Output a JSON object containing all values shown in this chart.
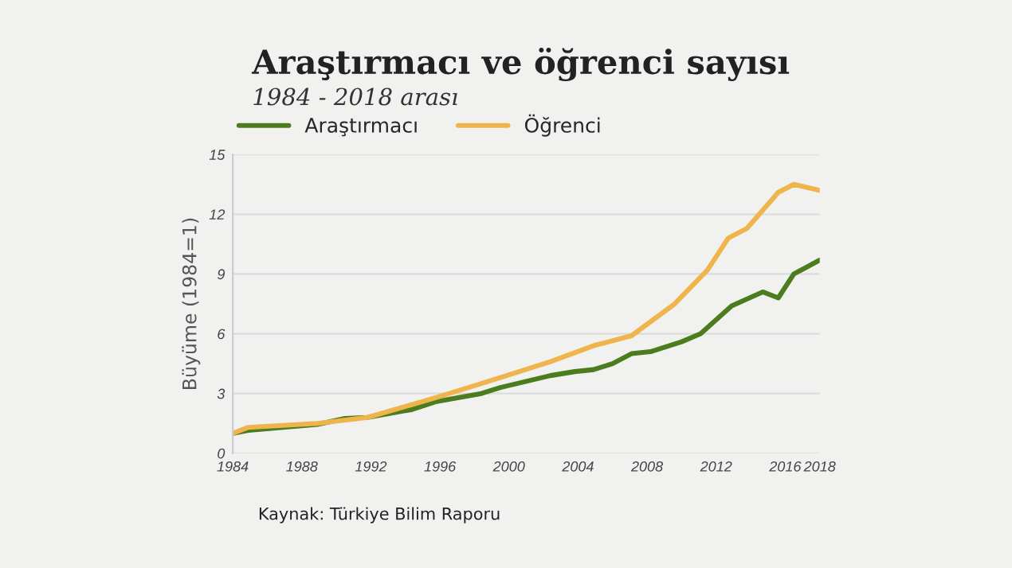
{
  "chart_data": {
    "type": "line",
    "title": "Araştırmacı ve öğrenci sayısı",
    "subtitle": "1984 - 2018 arası",
    "ylabel": "Büyüme (1984=1)",
    "series": [
      {
        "name": "Araştırmacı",
        "color": "#4b7d1e",
        "x": [
          1984,
          1984.9,
          1988.9,
          1990.5,
          1991.8,
          1994.4,
          1995.8,
          1998.4,
          1999.5,
          2002.4,
          2003.8,
          2004.9,
          2006.0,
          2007.1,
          2008.2,
          2010.0,
          2011.1,
          2012.9,
          2014.7,
          2015.6,
          2016.5,
          2018
        ],
        "values": [
          1.0,
          1.15,
          1.45,
          1.75,
          1.8,
          2.2,
          2.6,
          3.0,
          3.3,
          3.9,
          4.1,
          4.2,
          4.5,
          5.0,
          5.1,
          5.6,
          6.0,
          7.4,
          8.1,
          7.8,
          9.0,
          9.7
        ]
      },
      {
        "name": "Öğrenci",
        "color": "#f0b44c",
        "x": [
          1984,
          1984.9,
          1988.9,
          1991.8,
          1995.8,
          1999.5,
          2002.4,
          2004.9,
          2007.1,
          2009.6,
          2011.5,
          2012.7,
          2013.8,
          2015.6,
          2016.5,
          2018
        ],
        "values": [
          1.0,
          1.3,
          1.5,
          1.8,
          2.8,
          3.8,
          4.6,
          5.4,
          5.9,
          7.5,
          9.2,
          10.8,
          11.3,
          13.1,
          13.5,
          13.2
        ]
      }
    ],
    "xlim": [
      1984,
      2018
    ],
    "xticks": [
      1984,
      1988,
      1992,
      1996,
      2000,
      2004,
      2008,
      2012,
      2016,
      2018
    ],
    "ylim": [
      0,
      15
    ],
    "yticks": [
      0,
      3,
      6,
      9,
      12,
      15
    ],
    "grid": "y",
    "legend": "top left",
    "annotations": [
      "Kaynak: Türkiye Bilim Raporu"
    ]
  }
}
